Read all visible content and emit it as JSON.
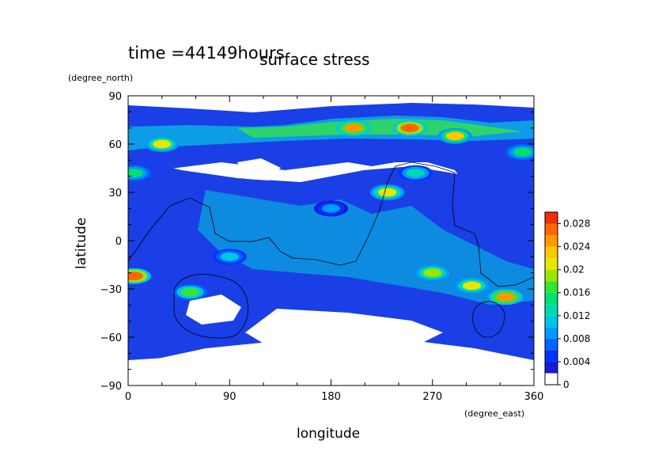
{
  "header": {
    "time_label": "time =44149hours",
    "title": "surface stress"
  },
  "chart_data": {
    "type": "heatmap",
    "title": "surface stress",
    "subtitle": "time =44149hours",
    "xlabel": "longitude",
    "ylabel": "latitude",
    "x_units": "(degree_east)",
    "y_units": "(degree_north)",
    "xlim": [
      0,
      360
    ],
    "ylim": [
      -90,
      90
    ],
    "x_ticks": [
      0,
      90,
      180,
      270,
      360
    ],
    "y_ticks": [
      -90,
      -60,
      -30,
      0,
      30,
      60,
      90
    ],
    "grid": false,
    "colorbar": {
      "min": 0,
      "max": 0.03,
      "levels": [
        0,
        0.002,
        0.004,
        0.006,
        0.008,
        0.01,
        0.012,
        0.014,
        0.016,
        0.018,
        0.02,
        0.022,
        0.024,
        0.026,
        0.028,
        0.03
      ],
      "tick_labels": [
        "0",
        "0.004",
        "0.008",
        "0.012",
        "0.016",
        "0.02",
        "0.024",
        "0.028"
      ],
      "colors": [
        "#ffffff",
        "#1a1ad6",
        "#0033ff",
        "#0066ff",
        "#0099ff",
        "#00c6e6",
        "#00d9b0",
        "#00e070",
        "#33e633",
        "#99e600",
        "#e6e600",
        "#ffc800",
        "#ff9900",
        "#ff6600",
        "#f03000"
      ]
    },
    "hotspots": [
      {
        "lon": 30,
        "lat": 60,
        "value": 0.02
      },
      {
        "lon": 5,
        "lat": 42,
        "value": 0.014
      },
      {
        "lon": 200,
        "lat": 70,
        "value": 0.024
      },
      {
        "lon": 250,
        "lat": 70,
        "value": 0.026
      },
      {
        "lon": 290,
        "lat": 65,
        "value": 0.022
      },
      {
        "lon": 350,
        "lat": 55,
        "value": 0.014
      },
      {
        "lon": 230,
        "lat": 30,
        "value": 0.02
      },
      {
        "lon": 255,
        "lat": 42,
        "value": 0.012
      },
      {
        "lon": 5,
        "lat": -22,
        "value": 0.026
      },
      {
        "lon": 55,
        "lat": -32,
        "value": 0.016
      },
      {
        "lon": 270,
        "lat": -20,
        "value": 0.018
      },
      {
        "lon": 305,
        "lat": -28,
        "value": 0.02
      },
      {
        "lon": 335,
        "lat": -35,
        "value": 0.024
      },
      {
        "lon": 90,
        "lat": -10,
        "value": 0.01
      },
      {
        "lon": 180,
        "lat": 20,
        "value": 0.008
      }
    ]
  }
}
